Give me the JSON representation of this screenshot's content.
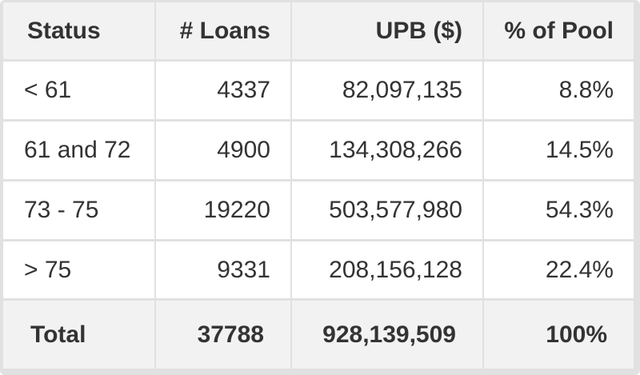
{
  "table": {
    "headers": [
      "Status",
      "# Loans",
      "UPB ($)",
      "% of Pool"
    ],
    "rows": [
      {
        "status": "< 61",
        "loans": "4337",
        "upb": "82,097,135",
        "pool": "8.8%"
      },
      {
        "status": "61 and 72",
        "loans": "4900",
        "upb": "134,308,266",
        "pool": "14.5%"
      },
      {
        "status": "73 - 75",
        "loans": "19220",
        "upb": "503,577,980",
        "pool": "54.3%"
      },
      {
        "status": "> 75",
        "loans": "9331",
        "upb": "208,156,128",
        "pool": "22.4%"
      }
    ],
    "total": {
      "status": "Total",
      "loans": "37788",
      "upb": "928,139,509",
      "pool": "100%"
    }
  },
  "colors": {
    "header_bg": "#f2f2f2",
    "body_bg": "#ffffff",
    "frame_border": "#e1e1e1",
    "text": "#333333"
  },
  "chart_data": {
    "type": "table",
    "title": "",
    "columns": [
      "Status",
      "# Loans",
      "UPB ($)",
      "% of Pool"
    ],
    "rows": [
      [
        "< 61",
        4337,
        82097135,
        8.8
      ],
      [
        "61 and 72",
        4900,
        134308266,
        14.5
      ],
      [
        "73 - 75",
        19220,
        503577980,
        54.3
      ],
      [
        "> 75",
        9331,
        208156128,
        22.4
      ]
    ],
    "total_row": [
      "Total",
      37788,
      928139509,
      100
    ],
    "layout_hints": {
      "status_column_align": "left",
      "numeric_columns_align": "right",
      "header_and_total_bold": true
    }
  }
}
